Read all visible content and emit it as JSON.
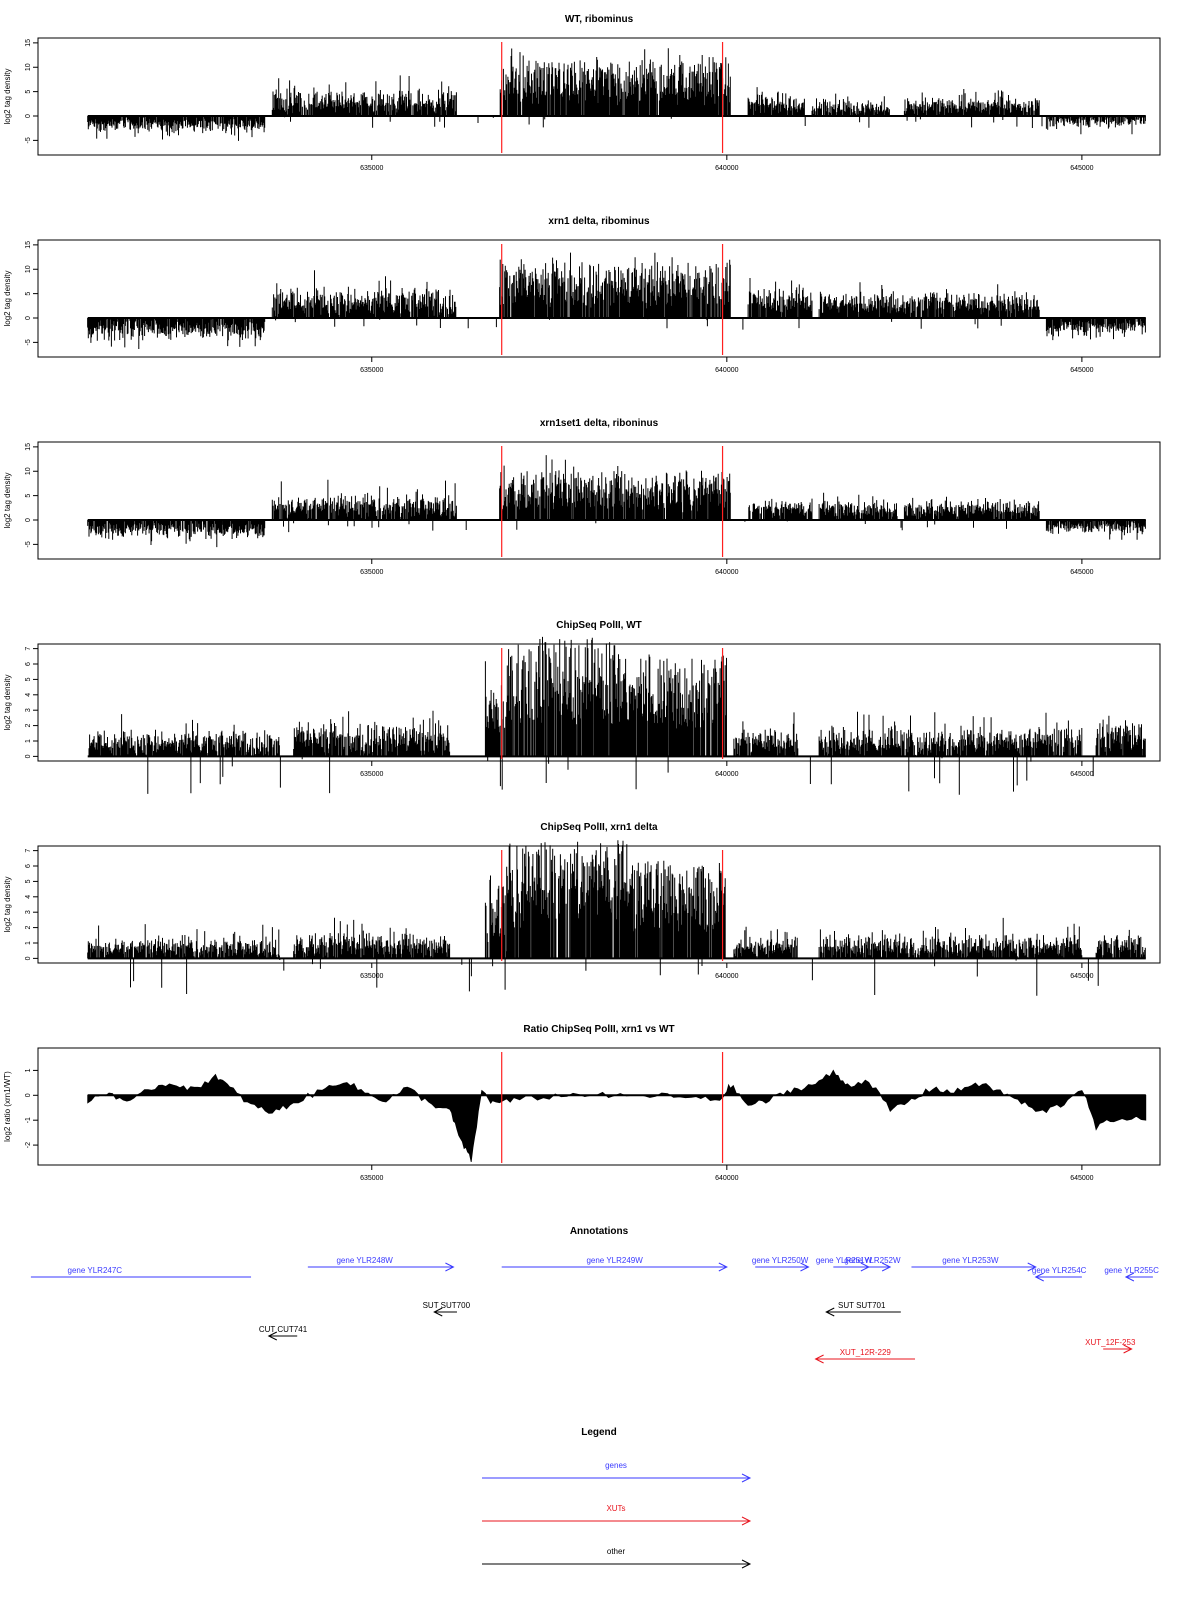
{
  "panels": [
    {
      "title": "WT, ribominus",
      "ylabel": "log2 tag density",
      "type": "bar",
      "yticks": [
        "-5",
        "0",
        "5",
        "10",
        "15"
      ],
      "ytick_values": [
        -5,
        0,
        5,
        10,
        15
      ],
      "ylim": [
        -8,
        16
      ],
      "xticks": [
        "635000",
        "640000",
        "645000"
      ],
      "xtick_values": [
        635000,
        640000,
        645000
      ],
      "xlim": [
        630300,
        646100
      ],
      "red_lines_x": [
        636830,
        639940
      ],
      "segments": [
        {
          "x0": 631000,
          "x1": 633500,
          "base": -2.3,
          "amp": 1.6,
          "sign": -1
        },
        {
          "x0": 633600,
          "x1": 636200,
          "base": 3.6,
          "amp": 2.8,
          "sign": 1
        },
        {
          "x0": 636800,
          "x1": 640050,
          "base": 8.8,
          "amp": 2.9,
          "sign": 1
        },
        {
          "x0": 640300,
          "x1": 641100,
          "base": 3.0,
          "amp": 2.2,
          "sign": 1
        },
        {
          "x0": 641200,
          "x1": 642300,
          "base": 2.0,
          "amp": 1.6,
          "sign": 1
        },
        {
          "x0": 642500,
          "x1": 644400,
          "base": 2.7,
          "amp": 1.5,
          "sign": 1
        },
        {
          "x0": 644500,
          "x1": 645900,
          "base": -1.3,
          "amp": 1.6,
          "sign": -1
        }
      ]
    },
    {
      "title": "xrn1 delta, ribominus",
      "ylabel": "log2 tag density",
      "type": "bar",
      "yticks": [
        "-5",
        "0",
        "5",
        "10",
        "15"
      ],
      "ytick_values": [
        -5,
        0,
        5,
        10,
        15
      ],
      "ylim": [
        -8,
        16
      ],
      "xticks": [
        "635000",
        "640000",
        "645000"
      ],
      "xtick_values": [
        635000,
        640000,
        645000
      ],
      "xlim": [
        630300,
        646100
      ],
      "red_lines_x": [
        636830,
        639940
      ],
      "segments": [
        {
          "x0": 631000,
          "x1": 633500,
          "base": -3.0,
          "amp": 2.0,
          "sign": -1
        },
        {
          "x0": 633600,
          "x1": 636200,
          "base": 4.2,
          "amp": 3.0,
          "sign": 1
        },
        {
          "x0": 636800,
          "x1": 640050,
          "base": 8.8,
          "amp": 3.0,
          "sign": 1
        },
        {
          "x0": 640300,
          "x1": 641200,
          "base": 4.5,
          "amp": 2.2,
          "sign": 1
        },
        {
          "x0": 641300,
          "x1": 642500,
          "base": 3.8,
          "amp": 2.3,
          "sign": 1
        },
        {
          "x0": 642500,
          "x1": 644400,
          "base": 3.8,
          "amp": 1.5,
          "sign": 1
        },
        {
          "x0": 644500,
          "x1": 645900,
          "base": -2.3,
          "amp": 1.7,
          "sign": -1
        }
      ]
    },
    {
      "title": "xrn1set1 delta, riboninus",
      "ylabel": "log2 tag density",
      "type": "bar",
      "yticks": [
        "-5",
        "0",
        "5",
        "10",
        "15"
      ],
      "ytick_values": [
        -5,
        0,
        5,
        10,
        15
      ],
      "ylim": [
        -8,
        16
      ],
      "xticks": [
        "635000",
        "640000",
        "645000"
      ],
      "xtick_values": [
        635000,
        640000,
        645000
      ],
      "xlim": [
        630300,
        646100
      ],
      "red_lines_x": [
        636830,
        639940
      ],
      "segments": [
        {
          "x0": 631000,
          "x1": 633500,
          "base": -2.5,
          "amp": 1.9,
          "sign": -1
        },
        {
          "x0": 633600,
          "x1": 636200,
          "base": 3.3,
          "amp": 2.7,
          "sign": 1
        },
        {
          "x0": 636800,
          "x1": 640050,
          "base": 7.5,
          "amp": 3.0,
          "sign": 1
        },
        {
          "x0": 640300,
          "x1": 641200,
          "base": 2.8,
          "amp": 1.9,
          "sign": 1
        },
        {
          "x0": 641300,
          "x1": 642400,
          "base": 2.5,
          "amp": 1.9,
          "sign": 1
        },
        {
          "x0": 642500,
          "x1": 644400,
          "base": 2.8,
          "amp": 1.4,
          "sign": 1
        },
        {
          "x0": 644500,
          "x1": 645900,
          "base": -1.8,
          "amp": 1.6,
          "sign": -1
        }
      ]
    },
    {
      "title": "ChipSeq PolII, WT",
      "ylabel": "log2 tag density",
      "type": "bar",
      "yticks": [
        "0",
        "1",
        "2",
        "3",
        "4",
        "5",
        "6",
        "7"
      ],
      "ytick_values": [
        0,
        1,
        2,
        3,
        4,
        5,
        6,
        7
      ],
      "ylim": [
        -0.3,
        7.3
      ],
      "xticks": [
        "635000",
        "640000",
        "645000"
      ],
      "xtick_values": [
        635000,
        640000,
        645000
      ],
      "xlim": [
        630300,
        646100
      ],
      "red_lines_x": [
        636830,
        639940
      ],
      "segments": [
        {
          "x0": 631000,
          "x1": 633700,
          "base": 1.1,
          "amp": 0.9,
          "sign": 1
        },
        {
          "x0": 633900,
          "x1": 636100,
          "base": 1.5,
          "amp": 1.0,
          "sign": 1
        },
        {
          "x0": 636600,
          "x1": 636900,
          "base": 3.5,
          "amp": 2.0,
          "sign": 1
        },
        {
          "x0": 636900,
          "x1": 638600,
          "base": 6.1,
          "amp": 0.6,
          "sign": 1
        },
        {
          "x0": 638600,
          "x1": 640000,
          "base": 5.2,
          "amp": 0.5,
          "sign": 1
        },
        {
          "x0": 640100,
          "x1": 641000,
          "base": 1.2,
          "amp": 0.9,
          "sign": 1
        },
        {
          "x0": 641300,
          "x1": 645000,
          "base": 1.2,
          "amp": 1.0,
          "sign": 1
        },
        {
          "x0": 645200,
          "x1": 645900,
          "base": 1.6,
          "amp": 0.9,
          "sign": 1
        }
      ]
    },
    {
      "title": "ChipSeq PolII, xrn1 delta",
      "ylabel": "log2 tag density",
      "type": "bar",
      "yticks": [
        "0",
        "1",
        "2",
        "3",
        "4",
        "5",
        "6",
        "7"
      ],
      "ytick_values": [
        0,
        1,
        2,
        3,
        4,
        5,
        6,
        7
      ],
      "ylim": [
        -0.3,
        7.3
      ],
      "xticks": [
        "635000",
        "640000",
        "645000"
      ],
      "xtick_values": [
        635000,
        640000,
        645000
      ],
      "xlim": [
        630300,
        646100
      ],
      "red_lines_x": [
        636830,
        639940
      ],
      "segments": [
        {
          "x0": 631000,
          "x1": 633700,
          "base": 0.8,
          "amp": 0.8,
          "sign": 1
        },
        {
          "x0": 633900,
          "x1": 636100,
          "base": 1.1,
          "amp": 0.9,
          "sign": 1
        },
        {
          "x0": 636600,
          "x1": 636900,
          "base": 3.5,
          "amp": 2.0,
          "sign": 1
        },
        {
          "x0": 636900,
          "x1": 638600,
          "base": 6.0,
          "amp": 0.6,
          "sign": 1
        },
        {
          "x0": 638600,
          "x1": 640000,
          "base": 5.0,
          "amp": 0.5,
          "sign": 1
        },
        {
          "x0": 640100,
          "x1": 641000,
          "base": 0.9,
          "amp": 0.8,
          "sign": 1
        },
        {
          "x0": 641300,
          "x1": 645000,
          "base": 1.0,
          "amp": 0.9,
          "sign": 1
        },
        {
          "x0": 645200,
          "x1": 645900,
          "base": 1.0,
          "amp": 0.8,
          "sign": 1
        }
      ]
    },
    {
      "title": "Ratio ChipSeq PolII, xrn1 vs WT",
      "ylabel": "log2 ratio (xrn1/WT)",
      "type": "area",
      "yticks": [
        "-2",
        "-1",
        "0",
        "1"
      ],
      "ytick_values": [
        -2,
        -1,
        0,
        1
      ],
      "ylim": [
        -2.8,
        1.9
      ],
      "xticks": [
        "635000",
        "640000",
        "645000"
      ],
      "xtick_values": [
        635000,
        640000,
        645000
      ],
      "xlim": [
        630300,
        646100
      ],
      "red_lines_x": [
        636830,
        639940
      ],
      "points": [
        [
          631000,
          -0.2
        ],
        [
          631300,
          0.1
        ],
        [
          631600,
          -0.3
        ],
        [
          631900,
          0.3
        ],
        [
          632200,
          0.5
        ],
        [
          632500,
          0.2
        ],
        [
          632800,
          0.8
        ],
        [
          633000,
          0.3
        ],
        [
          633300,
          -0.4
        ],
        [
          633600,
          -0.7
        ],
        [
          633900,
          -0.3
        ],
        [
          634300,
          0.2
        ],
        [
          634600,
          0.6
        ],
        [
          634900,
          0.1
        ],
        [
          635200,
          -0.2
        ],
        [
          635500,
          0.3
        ],
        [
          635800,
          -0.3
        ],
        [
          636100,
          -0.6
        ],
        [
          636250,
          -1.8
        ],
        [
          636400,
          -2.6
        ],
        [
          636550,
          0.2
        ],
        [
          636700,
          -0.3
        ],
        [
          637000,
          -0.2
        ],
        [
          637500,
          -0.05
        ],
        [
          638000,
          0.05
        ],
        [
          638500,
          -0.05
        ],
        [
          639000,
          0.0
        ],
        [
          639500,
          -0.1
        ],
        [
          639900,
          -0.2
        ],
        [
          640050,
          0.4
        ],
        [
          640300,
          -0.4
        ],
        [
          640600,
          -0.2
        ],
        [
          640900,
          0.2
        ],
        [
          641200,
          0.4
        ],
        [
          641500,
          0.9
        ],
        [
          641700,
          0.4
        ],
        [
          642000,
          0.6
        ],
        [
          642300,
          -0.6
        ],
        [
          642600,
          -0.2
        ],
        [
          642900,
          0.3
        ],
        [
          643200,
          0.1
        ],
        [
          643500,
          0.5
        ],
        [
          643800,
          0.2
        ],
        [
          644100,
          -0.2
        ],
        [
          644400,
          -0.7
        ],
        [
          644700,
          -0.4
        ],
        [
          645000,
          0.3
        ],
        [
          645200,
          -1.3
        ],
        [
          645500,
          -0.9
        ],
        [
          645900,
          -1.0
        ]
      ]
    }
  ],
  "annotations": {
    "title": "Annotations",
    "items": [
      {
        "label": "gene YLR247C",
        "start": 630200,
        "end": 633300,
        "dir": "left",
        "color": "#3a3aff",
        "track": 0,
        "label_x": 631100,
        "arrow": false
      },
      {
        "label": "gene YLR248W",
        "start": 634100,
        "end": 636150,
        "dir": "right",
        "color": "#3a3aff",
        "track": 1,
        "label_x": 634900,
        "arrow": true
      },
      {
        "label": "gene YLR249W",
        "start": 636830,
        "end": 640000,
        "dir": "right",
        "color": "#3a3aff",
        "track": 1,
        "label_x": 638420,
        "arrow": true
      },
      {
        "label": "gene YLR250W",
        "start": 640400,
        "end": 641150,
        "dir": "right",
        "color": "#3a3aff",
        "track": 1,
        "label_x": 640750,
        "arrow": true
      },
      {
        "label": "gene YLR251W",
        "start": 641500,
        "end": 642000,
        "dir": "right",
        "color": "#3a3aff",
        "track": 1,
        "label_x": 641650,
        "arrow": true
      },
      {
        "label": "gene YLR252W",
        "start": 641850,
        "end": 642300,
        "dir": "right",
        "color": "#3a3aff",
        "track": 1,
        "label_x": 642050,
        "arrow": true
      },
      {
        "label": "gene YLR253W",
        "start": 642600,
        "end": 644350,
        "dir": "right",
        "color": "#3a3aff",
        "track": 1,
        "label_x": 643430,
        "arrow": true
      },
      {
        "label": "gene YLR254C",
        "start": 644350,
        "end": 645000,
        "dir": "left",
        "color": "#3a3aff",
        "track": 0,
        "label_x": 644680,
        "arrow": true
      },
      {
        "label": "gene YLR255C",
        "start": 645620,
        "end": 646000,
        "dir": "left",
        "color": "#3a3aff",
        "track": 0,
        "label_x": 645700,
        "arrow": true
      },
      {
        "label": "SUT SUT700",
        "start": 635880,
        "end": 636200,
        "dir": "left",
        "color": "#000000",
        "track": 2,
        "label_x": 636050,
        "arrow": true
      },
      {
        "label": "SUT SUT701",
        "start": 641400,
        "end": 642450,
        "dir": "left",
        "color": "#000000",
        "track": 2,
        "label_x": 641900,
        "arrow": true
      },
      {
        "label": "CUT CUT741",
        "start": 633550,
        "end": 633950,
        "dir": "left",
        "color": "#000000",
        "track": 3,
        "label_x": 633750,
        "arrow": true
      },
      {
        "label": "XUT_12R-229",
        "start": 641250,
        "end": 642650,
        "dir": "left",
        "color": "#e8141e",
        "track": 4,
        "label_x": 641950,
        "arrow": true
      },
      {
        "label": "XUT_12F-253",
        "start": 645300,
        "end": 645700,
        "dir": "right",
        "color": "#e8141e",
        "track": 5,
        "label_x": 645400,
        "arrow": true
      }
    ]
  },
  "legend": {
    "title": "Legend",
    "items": [
      {
        "label": "genes",
        "color": "#3a3aff"
      },
      {
        "label": "XUTs",
        "color": "#e8141e"
      },
      {
        "label": "other",
        "color": "#000000"
      }
    ]
  }
}
